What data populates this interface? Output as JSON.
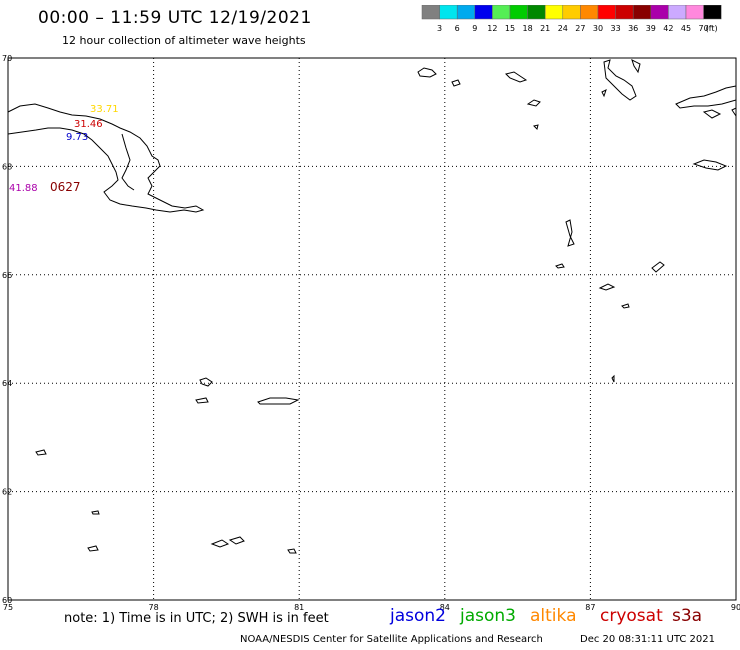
{
  "header": {
    "title": "00:00 – 11:59 UTC 12/19/2021",
    "subtitle": "12 hour collection of altimeter wave heights"
  },
  "legend": {
    "unit": "(ft)",
    "bins": [
      {
        "label": "3",
        "color": "#808080"
      },
      {
        "label": "6",
        "color": "#00e5ee"
      },
      {
        "label": "9",
        "color": "#00aaee"
      },
      {
        "label": "12",
        "color": "#0000ee"
      },
      {
        "label": "15",
        "color": "#55ee55"
      },
      {
        "label": "18",
        "color": "#00cc00"
      },
      {
        "label": "21",
        "color": "#008800"
      },
      {
        "label": "24",
        "color": "#ffff00"
      },
      {
        "label": "27",
        "color": "#ffcc00"
      },
      {
        "label": "30",
        "color": "#ff8800"
      },
      {
        "label": "33",
        "color": "#ff0000"
      },
      {
        "label": "36",
        "color": "#cc0000"
      },
      {
        "label": "39",
        "color": "#880000"
      },
      {
        "label": "42",
        "color": "#aa00aa"
      },
      {
        "label": "45",
        "color": "#ccaaff"
      },
      {
        "label": "70",
        "color": "#ff88dd"
      },
      {
        "label": "",
        "color": "#000000"
      }
    ]
  },
  "map": {
    "lon_range": [
      75,
      90
    ],
    "lat_range": [
      60,
      70
    ],
    "lon_ticks": [
      "75",
      "78",
      "81",
      "84",
      "87",
      "90"
    ],
    "lat_ticks": [
      "70",
      "68",
      "66",
      "64",
      "62",
      "60"
    ],
    "observations": [
      {
        "value": "33.71",
        "color": "#ffd700"
      },
      {
        "value": "31.46",
        "color": "#cc0000"
      },
      {
        "value": "9.73",
        "color": "#0000cc"
      },
      {
        "value": "41.88",
        "color": "#aa00aa"
      },
      {
        "value": "0627",
        "color": "#880000"
      }
    ]
  },
  "footer": {
    "note": "note: 1) Time is in UTC; 2) SWH is in feet",
    "satellites": [
      {
        "name": "jason2",
        "color": "#0000dd"
      },
      {
        "name": "jason3",
        "color": "#00aa00"
      },
      {
        "name": "altika",
        "color": "#ff8800"
      },
      {
        "name": "cryosat",
        "color": "#cc0000"
      },
      {
        "name": "s3a",
        "color": "#880000"
      }
    ],
    "credit": "NOAA/NESDIS Center for Satellite Applications and Research",
    "timestamp": "Dec 20 08:31:11 UTC 2021"
  }
}
